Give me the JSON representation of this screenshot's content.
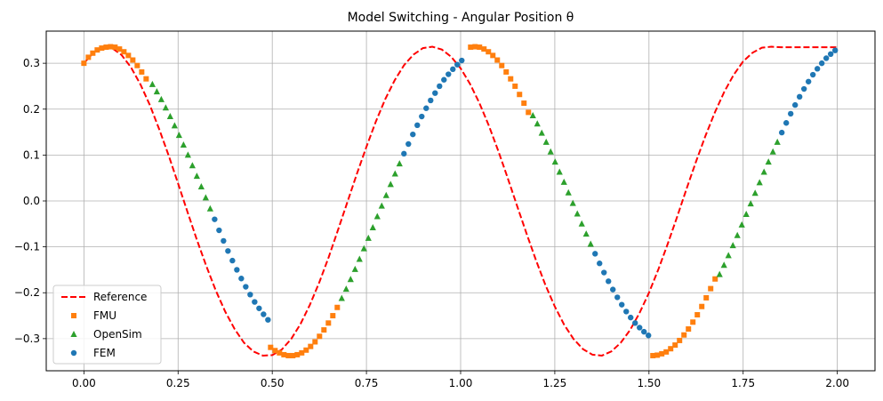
{
  "chart_data": {
    "type": "scatter",
    "title": "Model Switching - Angular Position θ",
    "xlabel": "",
    "ylabel": "",
    "xlim": [
      -0.1,
      2.1
    ],
    "ylim": [
      -0.37,
      0.37
    ],
    "grid": true,
    "legend_position": "lower-left",
    "x_ticks": [
      {
        "value": 0.0,
        "label": "0.00"
      },
      {
        "value": 0.25,
        "label": "0.25"
      },
      {
        "value": 0.5,
        "label": "0.50"
      },
      {
        "value": 0.75,
        "label": "0.75"
      },
      {
        "value": 1.0,
        "label": "1.00"
      },
      {
        "value": 1.25,
        "label": "1.25"
      },
      {
        "value": 1.5,
        "label": "1.50"
      },
      {
        "value": 1.75,
        "label": "1.75"
      },
      {
        "value": 2.0,
        "label": "2.00"
      }
    ],
    "y_ticks": [
      {
        "value": 0.3,
        "label": "0.3"
      },
      {
        "value": 0.2,
        "label": "0.2"
      },
      {
        "value": 0.1,
        "label": "0.1"
      },
      {
        "value": 0.0,
        "label": "0.0"
      },
      {
        "value": -0.1,
        "label": "−0.1"
      },
      {
        "value": -0.2,
        "label": "−0.2"
      },
      {
        "value": -0.3,
        "label": "−0.3"
      }
    ],
    "series": [
      {
        "name": "Reference",
        "kind": "line",
        "color": "#ff0000",
        "dash": true,
        "x": [
          0.0,
          0.025,
          0.05,
          0.075,
          0.1,
          0.125,
          0.15,
          0.175,
          0.2,
          0.225,
          0.25,
          0.275,
          0.3,
          0.325,
          0.35,
          0.375,
          0.4,
          0.425,
          0.45,
          0.475,
          0.5,
          0.525,
          0.55,
          0.575,
          0.6,
          0.625,
          0.65,
          0.675,
          0.7,
          0.725,
          0.75,
          0.775,
          0.8,
          0.825,
          0.85,
          0.875,
          0.9,
          0.925,
          0.95,
          0.975,
          1.0,
          1.025,
          1.05,
          1.075,
          1.1,
          1.125,
          1.15,
          1.175,
          1.2,
          1.225,
          1.25,
          1.275,
          1.3,
          1.325,
          1.35,
          1.375,
          1.4,
          1.425,
          1.45,
          1.475,
          1.5,
          1.525,
          1.55,
          1.575,
          1.6,
          1.625,
          1.65,
          1.675,
          1.7,
          1.725,
          1.75,
          1.775,
          1.8,
          1.825,
          1.85,
          1.875,
          1.9,
          1.925,
          1.95,
          1.975,
          2.0
        ],
        "y": [
          0.3,
          0.323,
          0.335,
          0.333,
          0.318,
          0.291,
          0.254,
          0.209,
          0.156,
          0.099,
          0.038,
          -0.024,
          -0.085,
          -0.142,
          -0.195,
          -0.241,
          -0.279,
          -0.309,
          -0.328,
          -0.337,
          -0.336,
          -0.324,
          -0.301,
          -0.268,
          -0.226,
          -0.177,
          -0.122,
          -0.062,
          -0.001,
          0.06,
          0.118,
          0.173,
          0.222,
          0.263,
          0.296,
          0.319,
          0.333,
          0.336,
          0.33,
          0.314,
          0.289,
          0.255,
          0.213,
          0.164,
          0.109,
          0.05,
          -0.011,
          -0.071,
          -0.129,
          -0.183,
          -0.23,
          -0.27,
          -0.301,
          -0.323,
          -0.335,
          -0.337,
          -0.328,
          -0.309,
          -0.281,
          -0.244,
          -0.2,
          -0.149,
          -0.093,
          -0.034,
          0.027,
          0.086,
          0.142,
          0.193,
          0.238,
          0.275,
          0.304,
          0.323,
          0.334,
          0.336,
          0.335,
          0.335,
          0.335,
          0.335,
          0.335,
          0.335,
          0.335
        ]
      },
      {
        "name": "FMU",
        "kind": "marker",
        "marker": "square",
        "color": "#ff7f0e",
        "x": [
          0.0,
          0.0118,
          0.0236,
          0.0354,
          0.0472,
          0.059,
          0.0708,
          0.0826,
          0.0944,
          0.1062,
          0.118,
          0.1298,
          0.1416,
          0.1534,
          0.1652,
          0.4956,
          0.5074,
          0.5192,
          0.531,
          0.5428,
          0.5546,
          0.5664,
          0.5782,
          0.59,
          0.6018,
          0.6136,
          0.6254,
          0.6372,
          0.649,
          0.6608,
          0.6726,
          1.0266,
          1.0384,
          1.0502,
          1.062,
          1.0738,
          1.0856,
          1.0974,
          1.1092,
          1.121,
          1.1328,
          1.1446,
          1.1564,
          1.1682,
          1.18,
          1.5104,
          1.5222,
          1.534,
          1.5458,
          1.5576,
          1.5694,
          1.5812,
          1.593,
          1.6048,
          1.6166,
          1.6284,
          1.6402,
          1.652,
          1.6638,
          1.6756
        ],
        "y": [
          0.3,
          0.313,
          0.322,
          0.329,
          0.333,
          0.335,
          0.336,
          0.335,
          0.331,
          0.325,
          0.317,
          0.307,
          0.295,
          0.281,
          0.266,
          -0.319,
          -0.326,
          -0.331,
          -0.335,
          -0.337,
          -0.337,
          -0.335,
          -0.331,
          -0.325,
          -0.317,
          -0.307,
          -0.295,
          -0.281,
          -0.266,
          -0.25,
          -0.232,
          0.335,
          0.336,
          0.335,
          0.331,
          0.325,
          0.317,
          0.307,
          0.295,
          0.281,
          0.266,
          0.25,
          0.232,
          0.213,
          0.193,
          -0.337,
          -0.336,
          -0.333,
          -0.329,
          -0.322,
          -0.314,
          -0.304,
          -0.292,
          -0.279,
          -0.264,
          -0.248,
          -0.23,
          -0.211,
          -0.191,
          -0.17
        ]
      },
      {
        "name": "OpenSim",
        "kind": "marker",
        "marker": "triangle",
        "color": "#2ca02c",
        "x": [
          0.1818,
          0.1936,
          0.2054,
          0.2172,
          0.229,
          0.2408,
          0.2526,
          0.2644,
          0.2762,
          0.288,
          0.2998,
          0.3116,
          0.3234,
          0.3352,
          0.6844,
          0.6962,
          0.708,
          0.7198,
          0.7316,
          0.7434,
          0.7552,
          0.767,
          0.7788,
          0.7906,
          0.8024,
          0.8142,
          0.826,
          0.8378,
          1.1918,
          1.2036,
          1.2154,
          1.2272,
          1.239,
          1.2508,
          1.2626,
          1.2744,
          1.2862,
          1.298,
          1.3098,
          1.3216,
          1.3334,
          1.3452,
          1.6874,
          1.6992,
          1.711,
          1.7228,
          1.7346,
          1.7464,
          1.7582,
          1.77,
          1.7818,
          1.7936,
          1.8054,
          1.8172,
          1.829,
          1.8408
        ],
        "y": [
          0.254,
          0.238,
          0.221,
          0.203,
          0.184,
          0.164,
          0.143,
          0.122,
          0.1,
          0.077,
          0.054,
          0.031,
          0.007,
          -0.017,
          -0.212,
          -0.192,
          -0.171,
          -0.149,
          -0.127,
          -0.104,
          -0.081,
          -0.058,
          -0.034,
          -0.011,
          0.012,
          0.036,
          0.059,
          0.081,
          0.186,
          0.168,
          0.148,
          0.128,
          0.107,
          0.085,
          0.063,
          0.041,
          0.018,
          -0.005,
          -0.028,
          -0.05,
          -0.072,
          -0.094,
          -0.16,
          -0.14,
          -0.119,
          -0.097,
          -0.075,
          -0.052,
          -0.029,
          -0.006,
          0.017,
          0.04,
          0.063,
          0.085,
          0.107,
          0.128
        ]
      },
      {
        "name": "FEM",
        "kind": "marker",
        "marker": "circle",
        "color": "#1f77b4",
        "x": [
          0.347,
          0.3588,
          0.3706,
          0.3824,
          0.3942,
          0.406,
          0.4178,
          0.4296,
          0.4414,
          0.4532,
          0.465,
          0.4768,
          0.4886,
          0.8496,
          0.8614,
          0.8732,
          0.885,
          0.8968,
          0.9086,
          0.9204,
          0.9322,
          0.944,
          0.9558,
          0.9676,
          0.9794,
          0.9912,
          1.003,
          1.357,
          1.3688,
          1.3806,
          1.3924,
          1.4042,
          1.416,
          1.4278,
          1.4396,
          1.4514,
          1.4632,
          1.475,
          1.4868,
          1.4986,
          1.8526,
          1.8644,
          1.8762,
          1.888,
          1.8998,
          1.9116,
          1.9234,
          1.9352,
          1.947,
          1.9588,
          1.9706,
          1.9824,
          1.9942
        ],
        "y": [
          -0.04,
          -0.064,
          -0.087,
          -0.109,
          -0.13,
          -0.15,
          -0.169,
          -0.187,
          -0.204,
          -0.22,
          -0.234,
          -0.247,
          -0.259,
          0.103,
          0.124,
          0.145,
          0.165,
          0.184,
          0.202,
          0.219,
          0.235,
          0.25,
          0.264,
          0.276,
          0.287,
          0.297,
          0.306,
          -0.115,
          -0.136,
          -0.156,
          -0.175,
          -0.193,
          -0.21,
          -0.226,
          -0.241,
          -0.254,
          -0.266,
          -0.276,
          -0.285,
          -0.293,
          0.149,
          0.17,
          0.19,
          0.209,
          0.227,
          0.244,
          0.26,
          0.275,
          0.288,
          0.3,
          0.311,
          0.32,
          0.328
        ]
      }
    ]
  }
}
